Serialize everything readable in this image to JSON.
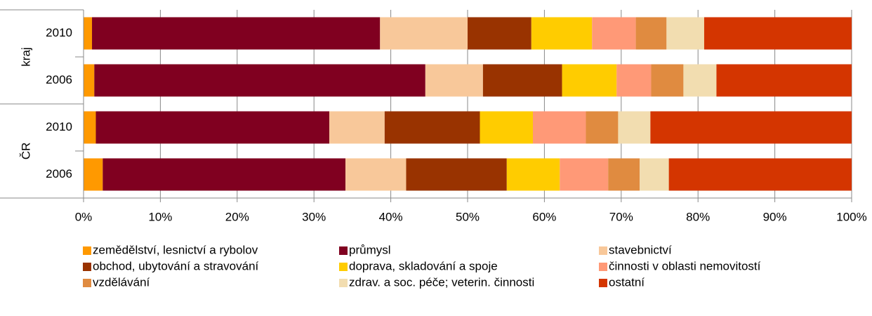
{
  "chart_data": {
    "type": "stacked_barh",
    "categories": [
      "2010",
      "2006",
      "2010",
      "2006"
    ],
    "groups": [
      "kraj",
      "ČR"
    ],
    "series": [
      {
        "name": "zemědělství, lesnictví a rybolov",
        "color": "#ff9900",
        "values": [
          1.1,
          1.4,
          1.6,
          2.5
        ]
      },
      {
        "name": "průmysl",
        "color": "#800020",
        "values": [
          37.5,
          43.1,
          30.4,
          31.6
        ]
      },
      {
        "name": "stavebnictví",
        "color": "#f8c89a",
        "values": [
          11.4,
          7.5,
          7.2,
          7.9
        ]
      },
      {
        "name": "obchod, ubytování a stravování",
        "color": "#993300",
        "values": [
          8.3,
          10.3,
          12.4,
          13.1
        ]
      },
      {
        "name": "doprava, skladování a spoje",
        "color": "#ffcc00",
        "values": [
          7.9,
          7.1,
          6.9,
          6.9
        ]
      },
      {
        "name": "činnosti v oblasti nemovitostí",
        "color": "#ff9977",
        "values": [
          5.7,
          4.5,
          6.9,
          6.3
        ]
      },
      {
        "name": "vzdělávání",
        "color": "#e08b40",
        "values": [
          4.0,
          4.2,
          4.2,
          4.1
        ]
      },
      {
        "name": "zdrav. a soc. péče; veterin. činnosti",
        "color": "#f2ddb0",
        "values": [
          4.9,
          4.3,
          4.2,
          3.8
        ]
      },
      {
        "name": "ostatní",
        "color": "#d43500",
        "values": [
          19.2,
          17.6,
          26.2,
          23.8
        ]
      }
    ],
    "xlim": [
      0,
      100
    ],
    "xticks": [
      {
        "value": 0,
        "label": "0%"
      },
      {
        "value": 10,
        "label": "10%"
      },
      {
        "value": 20,
        "label": "20%"
      },
      {
        "value": 30,
        "label": "30%"
      },
      {
        "value": 40,
        "label": "40%"
      },
      {
        "value": 50,
        "label": "50%"
      },
      {
        "value": 60,
        "label": "60%"
      },
      {
        "value": 70,
        "label": "70%"
      },
      {
        "value": 80,
        "label": "80%"
      },
      {
        "value": 90,
        "label": "90%"
      },
      {
        "value": 100,
        "label": "100%"
      }
    ],
    "grid": true,
    "legend": "bottom"
  }
}
